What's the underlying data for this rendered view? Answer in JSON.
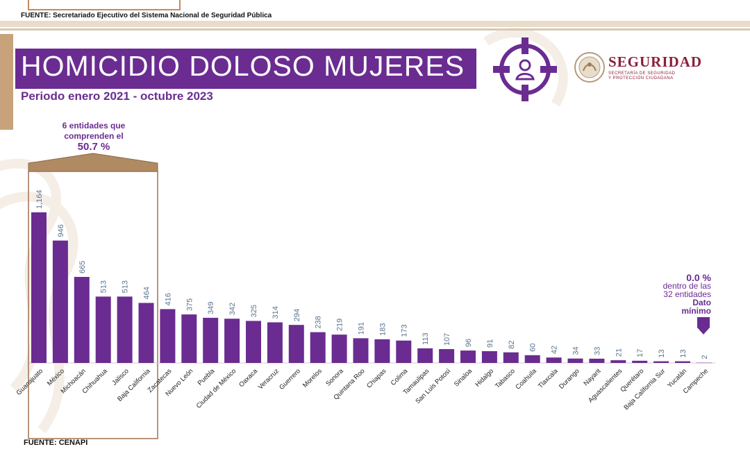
{
  "header": {
    "source_top": "FUENTE: Secretariado Ejecutivo del Sistema Nacional de Seguridad Pública",
    "title": "HOMICIDIO DOLOSO MUJERES",
    "subtitle": "Periodo enero 2021 - octubre 2023",
    "brand_name": "SEGURIDAD",
    "brand_sub1": "SECRETARÍA DE SEGURIDAD",
    "brand_sub2": "Y PROTECCIÓN CIUDADANA",
    "emblem_icon": "target-woman-icon",
    "seal_icon": "national-seal-icon"
  },
  "annotations": {
    "top_group_line1": "6 entidades que",
    "top_group_line2": "comprenden el",
    "top_group_pct": "50.7 %",
    "min_pct": "0.0 %",
    "min_line1": "dentro de las",
    "min_line2": "32 entidades",
    "min_line3": "Dato",
    "min_line4": "mínimo"
  },
  "footer": {
    "source_bottom": "FUENTE: CENAPI"
  },
  "colors": {
    "bar": "#6a2c91",
    "value_label": "#5a7590",
    "accent": "#c8a27a",
    "frame": "#a07050"
  },
  "chart_data": {
    "type": "bar",
    "title": "HOMICIDIO DOLOSO MUJERES",
    "subtitle": "Periodo enero 2021 - octubre 2023",
    "xlabel": "",
    "ylabel": "",
    "ylim": [
      0,
      1200
    ],
    "grid": false,
    "highlight_count": 6,
    "categories": [
      "Guanajuato",
      "México",
      "Michoacán",
      "Chihuahua",
      "Jalisco",
      "Baja California",
      "Zacatecas",
      "Nuevo León",
      "Puebla",
      "Ciudad de México",
      "Oaxaca",
      "Veracruz",
      "Guerrero",
      "Morelos",
      "Sonora",
      "Quintana Roo",
      "Chiapas",
      "Colima",
      "Tamaulipas",
      "San Luis Potosí",
      "Sinaloa",
      "Hidalgo",
      "Tabasco",
      "Coahuila",
      "Tlaxcala",
      "Durango",
      "Nayarit",
      "Aguascalientes",
      "Querétaro",
      "Baja California Sur",
      "Yucatán",
      "Campeche"
    ],
    "values": [
      1164,
      946,
      665,
      513,
      513,
      464,
      416,
      375,
      349,
      342,
      325,
      314,
      294,
      238,
      219,
      191,
      183,
      173,
      113,
      107,
      96,
      91,
      82,
      60,
      42,
      34,
      33,
      21,
      17,
      13,
      13,
      2
    ],
    "value_labels": [
      "1,164",
      "946",
      "665",
      "513",
      "513",
      "464",
      "416",
      "375",
      "349",
      "342",
      "325",
      "314",
      "294",
      "238",
      "219",
      "191",
      "183",
      "173",
      "113",
      "107",
      "96",
      "91",
      "82",
      "60",
      "42",
      "34",
      "33",
      "21",
      "17",
      "13",
      "13",
      "2"
    ]
  }
}
